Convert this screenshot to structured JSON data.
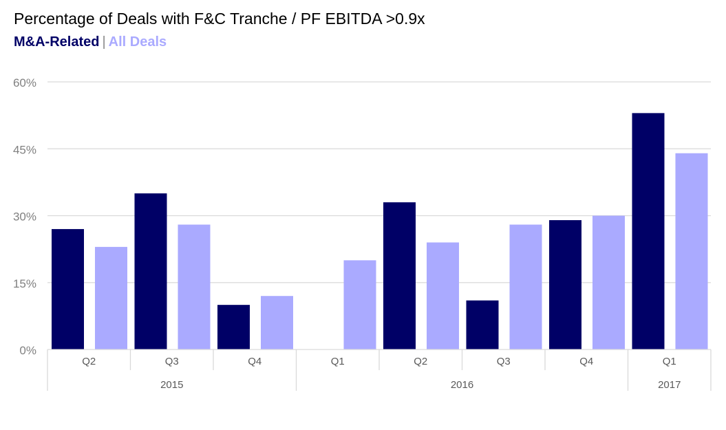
{
  "title": "Percentage of Deals with F&C Tranche / PF EBITDA >0.9x",
  "legend": {
    "primary_label": "M&A-Related",
    "separator": "|",
    "secondary_label": "All Deals"
  },
  "colors": {
    "primary": "#000066",
    "secondary": "#AAAAFF",
    "grid": "#d9d9d9",
    "axis_text": "#808080",
    "category_text": "#595959"
  },
  "chart_data": {
    "type": "bar",
    "title": "Percentage of Deals with F&C Tranche / PF EBITDA >0.9x",
    "categories": [
      "Q2",
      "Q3",
      "Q4",
      "Q1",
      "Q2",
      "Q3",
      "Q4",
      "Q1"
    ],
    "groups": [
      {
        "label": "2015",
        "span": 3
      },
      {
        "label": "2016",
        "span": 4
      },
      {
        "label": "2017",
        "span": 1
      }
    ],
    "series": [
      {
        "name": "M&A-Related",
        "color": "#000066",
        "values": [
          27,
          35,
          10,
          null,
          33,
          11,
          29,
          53
        ]
      },
      {
        "name": "All Deals",
        "color": "#AAAAFF",
        "values": [
          23,
          28,
          12,
          20,
          24,
          28,
          30,
          44
        ]
      }
    ],
    "ylim": [
      0,
      60
    ],
    "yticks": [
      0,
      15,
      30,
      45,
      60
    ],
    "ytick_labels": [
      "0%",
      "15%",
      "30%",
      "45%",
      "60%"
    ],
    "grid": true,
    "xlabel": "",
    "ylabel": ""
  }
}
